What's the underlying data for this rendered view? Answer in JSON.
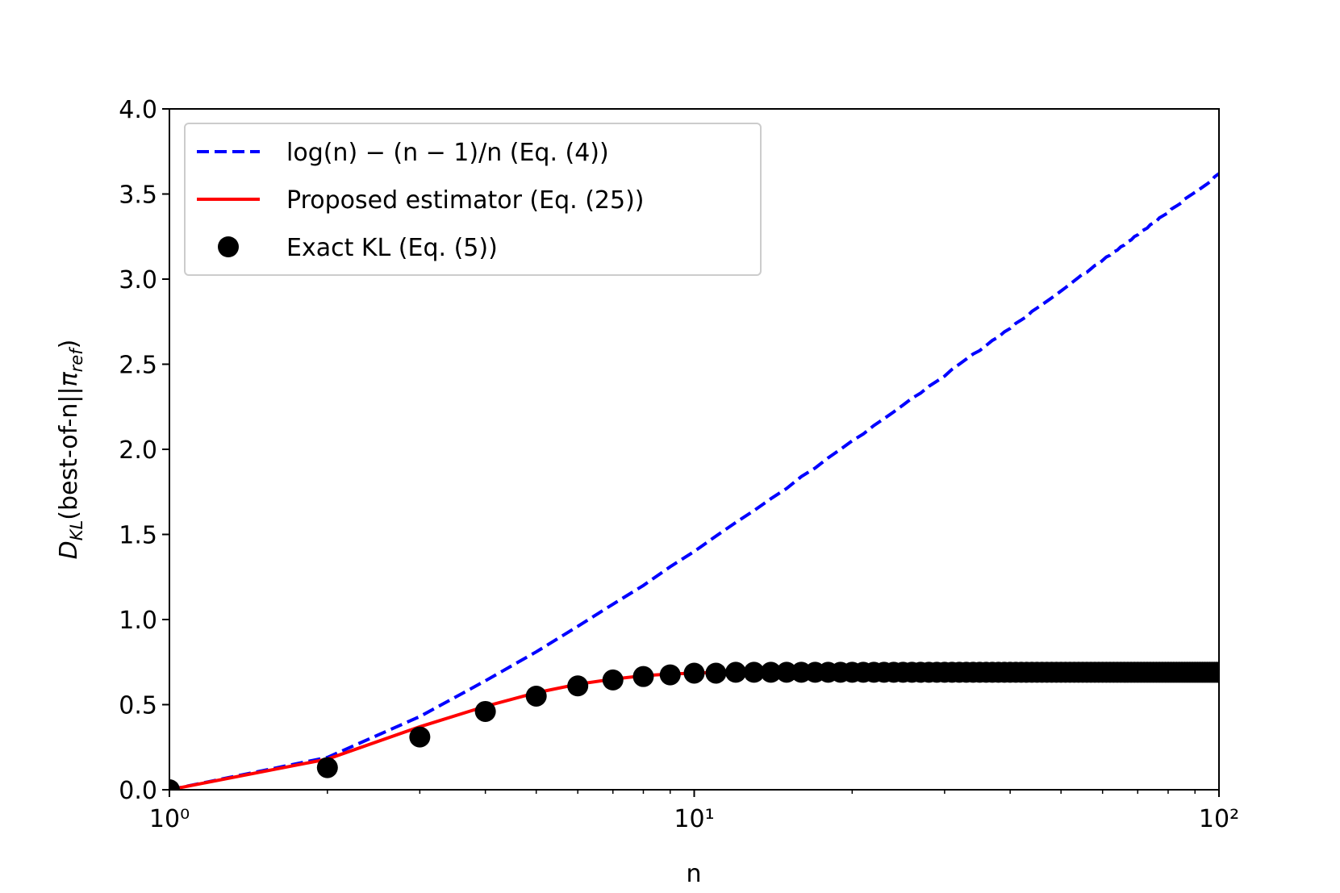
{
  "chart_data": {
    "type": "line",
    "xlabel": "n",
    "ylabel": [
      "D",
      "KL",
      "(best-of-n||",
      "π",
      "ref",
      ")"
    ],
    "xscale": "log",
    "xlim": [
      1,
      100
    ],
    "ylim": [
      0,
      4
    ],
    "xticks": [
      {
        "value": 1,
        "label": "10⁰"
      },
      {
        "value": 10,
        "label": "10¹"
      },
      {
        "value": 100,
        "label": "10²"
      }
    ],
    "xminorticks": [
      2,
      3,
      4,
      5,
      6,
      7,
      8,
      9,
      20,
      30,
      40,
      50,
      60,
      70,
      80,
      90
    ],
    "yticks": [
      {
        "value": 0,
        "label": "0.0"
      },
      {
        "value": 0.5,
        "label": "0.5"
      },
      {
        "value": 1,
        "label": "1.0"
      },
      {
        "value": 1.5,
        "label": "1.5"
      },
      {
        "value": 2,
        "label": "2.0"
      },
      {
        "value": 2.5,
        "label": "2.5"
      },
      {
        "value": 3,
        "label": "3.0"
      },
      {
        "value": 3.5,
        "label": "3.5"
      },
      {
        "value": 4,
        "label": "4.0"
      }
    ],
    "grid": false,
    "legend": "upper left",
    "x": [
      1,
      2,
      3,
      4,
      5,
      6,
      7,
      8,
      9,
      10,
      11,
      12,
      13,
      14,
      15,
      16,
      17,
      18,
      19,
      20,
      21,
      22,
      23,
      24,
      25,
      26,
      27,
      28,
      29,
      30,
      31,
      32,
      33,
      34,
      35,
      36,
      37,
      38,
      39,
      40,
      41,
      42,
      43,
      44,
      45,
      46,
      47,
      48,
      49,
      50,
      51,
      52,
      53,
      54,
      55,
      56,
      57,
      58,
      59,
      60,
      61,
      62,
      63,
      64,
      65,
      66,
      67,
      68,
      69,
      70,
      71,
      72,
      73,
      74,
      75,
      76,
      77,
      78,
      79,
      80,
      81,
      82,
      83,
      84,
      85,
      86,
      87,
      88,
      89,
      90,
      91,
      92,
      93,
      94,
      95,
      96,
      97,
      98,
      99,
      100
    ],
    "series": [
      {
        "name": "log(n) − (n − 1)/n (Eq. (4))",
        "color": "#0000ff",
        "style": "dashed",
        "values": [
          0,
          0.19,
          0.43,
          0.64,
          0.81,
          0.96,
          1.09,
          1.2,
          1.31,
          1.4,
          1.49,
          1.57,
          1.64,
          1.71,
          1.77,
          1.84,
          1.89,
          1.95,
          2.0,
          2.05,
          2.09,
          2.14,
          2.18,
          2.22,
          2.26,
          2.3,
          2.33,
          2.37,
          2.4,
          2.43,
          2.47,
          2.5,
          2.53,
          2.56,
          2.58,
          2.61,
          2.64,
          2.66,
          2.69,
          2.71,
          2.74,
          2.76,
          2.78,
          2.81,
          2.83,
          2.85,
          2.87,
          2.89,
          2.91,
          2.93,
          2.95,
          2.97,
          2.99,
          3.01,
          3.03,
          3.04,
          3.06,
          3.08,
          3.09,
          3.11,
          3.13,
          3.14,
          3.16,
          3.17,
          3.19,
          3.2,
          3.22,
          3.23,
          3.25,
          3.26,
          3.28,
          3.29,
          3.3,
          3.32,
          3.33,
          3.34,
          3.36,
          3.37,
          3.38,
          3.39,
          3.41,
          3.42,
          3.43,
          3.44,
          3.45,
          3.47,
          3.48,
          3.49,
          3.5,
          3.51,
          3.52,
          3.53,
          3.54,
          3.55,
          3.56,
          3.57,
          3.58,
          3.6,
          3.61,
          3.62
        ]
      },
      {
        "name": "Proposed estimator (Eq. (25))",
        "color": "#ff0000",
        "style": "solid",
        "values": [
          0,
          0.18,
          0.37,
          0.49,
          0.57,
          0.62,
          0.65,
          0.67,
          0.68,
          0.685,
          0.69,
          0.69,
          0.69,
          0.69,
          0.69,
          0.69,
          0.69,
          0.69,
          0.69,
          0.69,
          0.69,
          0.69,
          0.69,
          0.69,
          0.69,
          0.69,
          0.69,
          0.69,
          0.69,
          0.69,
          0.69,
          0.69,
          0.69,
          0.69,
          0.69,
          0.69,
          0.69,
          0.69,
          0.69,
          0.69,
          0.69,
          0.69,
          0.69,
          0.69,
          0.69,
          0.69,
          0.69,
          0.69,
          0.69,
          0.69,
          0.69,
          0.69,
          0.69,
          0.69,
          0.69,
          0.69,
          0.69,
          0.69,
          0.69,
          0.69,
          0.69,
          0.69,
          0.69,
          0.69,
          0.69,
          0.69,
          0.69,
          0.69,
          0.69,
          0.69,
          0.69,
          0.69,
          0.69,
          0.69,
          0.69,
          0.69,
          0.69,
          0.69,
          0.69,
          0.69,
          0.69,
          0.69,
          0.69,
          0.69,
          0.69,
          0.69,
          0.69,
          0.69,
          0.69,
          0.69,
          0.69,
          0.69,
          0.69,
          0.69,
          0.69,
          0.69,
          0.69,
          0.69,
          0.69,
          0.69
        ]
      },
      {
        "name": "Exact KL (Eq. (5))",
        "color": "#000000",
        "style": "markers",
        "values": [
          0,
          0.13,
          0.31,
          0.46,
          0.55,
          0.61,
          0.645,
          0.665,
          0.675,
          0.685,
          0.685,
          0.69,
          0.69,
          0.69,
          0.69,
          0.69,
          0.69,
          0.69,
          0.69,
          0.69,
          0.69,
          0.69,
          0.69,
          0.69,
          0.69,
          0.69,
          0.69,
          0.69,
          0.69,
          0.69,
          0.69,
          0.69,
          0.69,
          0.69,
          0.69,
          0.69,
          0.69,
          0.69,
          0.69,
          0.69,
          0.69,
          0.69,
          0.69,
          0.69,
          0.69,
          0.69,
          0.69,
          0.69,
          0.69,
          0.69,
          0.69,
          0.69,
          0.69,
          0.69,
          0.69,
          0.69,
          0.69,
          0.69,
          0.69,
          0.69,
          0.69,
          0.69,
          0.69,
          0.69,
          0.69,
          0.69,
          0.69,
          0.69,
          0.69,
          0.69,
          0.69,
          0.69,
          0.69,
          0.69,
          0.69,
          0.69,
          0.69,
          0.69,
          0.69,
          0.69,
          0.69,
          0.69,
          0.69,
          0.69,
          0.69,
          0.69,
          0.69,
          0.69,
          0.69,
          0.69,
          0.69,
          0.69,
          0.69,
          0.69,
          0.69,
          0.69,
          0.69,
          0.69,
          0.69,
          0.69
        ]
      }
    ]
  }
}
